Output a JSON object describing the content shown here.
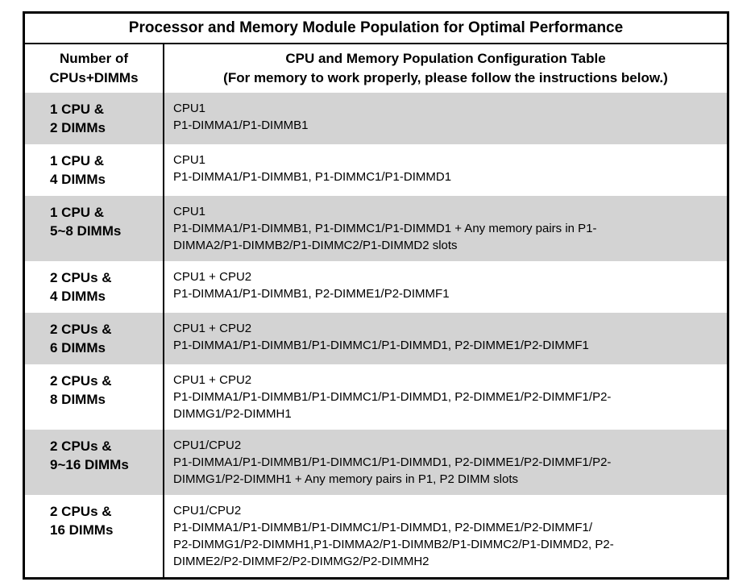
{
  "page": {
    "title": "Processor and Memory Module Population for Optimal Performance"
  },
  "header": {
    "col1_lines": [
      "Number of",
      "CPUs+DIMMs"
    ],
    "col2_lines": [
      "CPU and Memory Population Configuration Table",
      "(For memory to work properly, please follow the instructions below.)"
    ]
  },
  "rows": [
    {
      "label_lines": [
        "1 CPU &",
        "2 DIMMs"
      ],
      "detail_lines": [
        "CPU1",
        "P1-DIMMA1/P1-DIMMB1"
      ],
      "shaded": true
    },
    {
      "label_lines": [
        "1 CPU &",
        "4 DIMMs"
      ],
      "detail_lines": [
        "CPU1",
        "P1-DIMMA1/P1-DIMMB1, P1-DIMMC1/P1-DIMMD1"
      ],
      "shaded": false
    },
    {
      "label_lines": [
        "1 CPU &",
        "5~8 DIMMs"
      ],
      "detail_lines": [
        "CPU1",
        "P1-DIMMA1/P1-DIMMB1, P1-DIMMC1/P1-DIMMD1 + Any memory pairs in P1-",
        "DIMMA2/P1-DIMMB2/P1-DIMMC2/P1-DIMMD2 slots"
      ],
      "shaded": true
    },
    {
      "label_lines": [
        "2 CPUs &",
        "4 DIMMs"
      ],
      "detail_lines": [
        "CPU1 + CPU2",
        "P1-DIMMA1/P1-DIMMB1, P2-DIMME1/P2-DIMMF1"
      ],
      "shaded": false
    },
    {
      "label_lines": [
        "2 CPUs &",
        "6 DIMMs"
      ],
      "detail_lines": [
        "CPU1 + CPU2",
        "P1-DIMMA1/P1-DIMMB1/P1-DIMMC1/P1-DIMMD1, P2-DIMME1/P2-DIMMF1"
      ],
      "shaded": true
    },
    {
      "label_lines": [
        "2 CPUs &",
        "8 DIMMs"
      ],
      "detail_lines": [
        "CPU1 + CPU2",
        "P1-DIMMA1/P1-DIMMB1/P1-DIMMC1/P1-DIMMD1, P2-DIMME1/P2-DIMMF1/P2-",
        "DIMMG1/P2-DIMMH1"
      ],
      "shaded": false
    },
    {
      "label_lines": [
        "2 CPUs &",
        "9~16 DIMMs"
      ],
      "detail_lines": [
        "CPU1/CPU2",
        "P1-DIMMA1/P1-DIMMB1/P1-DIMMC1/P1-DIMMD1, P2-DIMME1/P2-DIMMF1/P2-",
        "DIMMG1/P2-DIMMH1 + Any memory pairs in P1, P2 DIMM slots"
      ],
      "shaded": true
    },
    {
      "label_lines": [
        "2 CPUs &",
        "16 DIMMs"
      ],
      "detail_lines": [
        "CPU1/CPU2",
        "P1-DIMMA1/P1-DIMMB1/P1-DIMMC1/P1-DIMMD1, P2-DIMME1/P2-DIMMF1/",
        "P2-DIMMG1/P2-DIMMH1,P1-DIMMA2/P1-DIMMB2/P1-DIMMC2/P1-DIMMD2, P2-",
        "DIMME2/P2-DIMMF2/P2-DIMMG2/P2-DIMMH2"
      ],
      "shaded": false
    }
  ],
  "colors": {
    "shaded_row_bg": "#d3d3d3",
    "border": "#000000",
    "text": "#000000",
    "background": "#ffffff"
  }
}
